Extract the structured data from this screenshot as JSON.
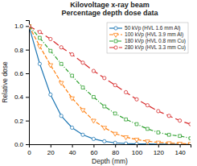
{
  "chart_data": {
    "type": "line",
    "title": "Kilovoltage x-ray beam\nPercentage depth dose data",
    "xlabel": "Depth (mm)",
    "ylabel": "Relative dose",
    "x": [
      0,
      10,
      20,
      30,
      40,
      50,
      60,
      70,
      80,
      90,
      100,
      110,
      120,
      130,
      140,
      150
    ],
    "xlim": [
      0,
      150
    ],
    "ylim": [
      0,
      1.05
    ],
    "xticks": [
      0,
      20,
      40,
      60,
      80,
      100,
      120,
      140
    ],
    "yticks": [
      {
        "value": 0.0,
        "label": "0.0"
      },
      0.2,
      0.4,
      0.6,
      0.8,
      {
        "value": 1.0,
        "label": "1.0"
      }
    ],
    "grid": false,
    "legend": "upper right",
    "series": [
      {
        "name": "50 kVp (HVL 1.6 mm Al)",
        "marker": "circle",
        "line_style": "solid",
        "values": [
          1.0,
          0.68,
          0.42,
          0.24,
          0.14,
          0.08,
          0.045,
          0.025,
          0.012,
          0.006,
          0.003,
          0.002,
          0.001,
          0.001,
          0.0,
          0.0
        ]
      },
      {
        "name": "100 kVp (HVL 3.9 mm Al)",
        "marker": "triangle-down",
        "line_style": "dash",
        "values": [
          1.0,
          0.83,
          0.67,
          0.52,
          0.39,
          0.29,
          0.2,
          0.14,
          0.09,
          0.06,
          0.04,
          0.025,
          0.015,
          0.01,
          0.006,
          0.004
        ]
      },
      {
        "name": "180 kVp (HVL 0.8 mm Cu)",
        "marker": "square",
        "line_style": "dashdot",
        "values": [
          1.0,
          0.9,
          0.79,
          0.68,
          0.58,
          0.48,
          0.4,
          0.32,
          0.26,
          0.21,
          0.17,
          0.13,
          0.1,
          0.08,
          0.07,
          0.05
        ]
      },
      {
        "name": "280 kVp (HVL 3.3 mm Cu)",
        "marker": "circle",
        "line_style": "loosedash",
        "values": [
          1.0,
          0.95,
          0.89,
          0.82,
          0.76,
          0.69,
          0.62,
          0.56,
          0.5,
          0.44,
          0.38,
          0.33,
          0.28,
          0.24,
          0.2,
          0.17
        ]
      }
    ]
  }
}
